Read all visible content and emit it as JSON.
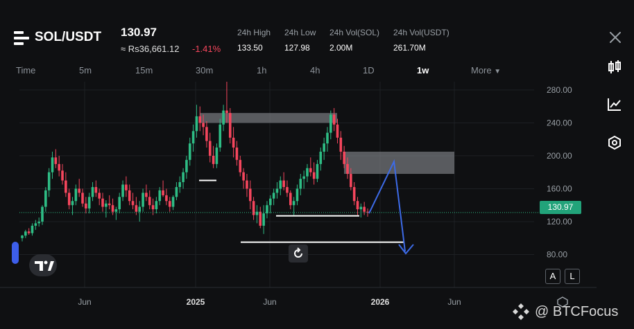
{
  "header": {
    "pair": "SOL/USDT",
    "price": "130.97",
    "fiat": "≈ Rs36,661.12",
    "change": "-1.41%",
    "stats": [
      {
        "label": "24h High",
        "value": "133.50"
      },
      {
        "label": "24h Low",
        "value": "127.98"
      },
      {
        "label": "24h Vol(SOL)",
        "value": "2.00M"
      },
      {
        "label": "24h Vol(USDT)",
        "value": "261.70M"
      }
    ]
  },
  "timeframes": [
    "Time",
    "5m",
    "15m",
    "30m",
    "1h",
    "4h",
    "1D",
    "1w",
    "More"
  ],
  "active_timeframe": "1w",
  "price_badge": "130.97",
  "scale_buttons": {
    "auto": "A",
    "log": "L"
  },
  "watermark": "@ BTCFocus",
  "icons": {
    "close": "close-icon",
    "candles": "candlestick-icon",
    "indicators": "indicator-icon",
    "settings": "hexagon-settings-icon",
    "tradingview": "tradingview-logo-icon",
    "reset": "reset-icon"
  },
  "colors": {
    "up": "#2ebd85",
    "down": "#f6465d",
    "annotation_arrow": "#3d6be8",
    "background": "#0f1012"
  },
  "chart_data": {
    "type": "candlestick",
    "interval": "1w",
    "yticks": [
      "280.00",
      "240.00",
      "200.00",
      "160.00",
      "120.00",
      "80.00"
    ],
    "ylim": [
      40,
      290
    ],
    "xticks": [
      "Jun",
      "2025",
      "Jun",
      "2026",
      "Jun"
    ],
    "last_price": 130.97,
    "grid": true,
    "zones": [
      {
        "from": 240,
        "to": 252,
        "label": ""
      },
      {
        "from": 178,
        "to": 205,
        "label": ""
      }
    ],
    "levels": [
      170,
      127,
      95
    ],
    "projection": [
      [
        130,
        193,
        88
      ]
    ],
    "candles": [
      [
        100,
        104,
        96,
        103
      ],
      [
        103,
        110,
        100,
        108
      ],
      [
        108,
        112,
        104,
        106
      ],
      [
        106,
        118,
        103,
        115
      ],
      [
        115,
        122,
        110,
        118
      ],
      [
        118,
        125,
        114,
        120
      ],
      [
        120,
        140,
        116,
        138
      ],
      [
        138,
        162,
        132,
        158
      ],
      [
        158,
        185,
        150,
        180
      ],
      [
        180,
        205,
        172,
        198
      ],
      [
        198,
        208,
        185,
        190
      ],
      [
        190,
        200,
        175,
        182
      ],
      [
        182,
        190,
        165,
        170
      ],
      [
        170,
        180,
        150,
        155
      ],
      [
        155,
        160,
        135,
        140
      ],
      [
        140,
        150,
        128,
        145
      ],
      [
        145,
        165,
        140,
        160
      ],
      [
        160,
        172,
        150,
        155
      ],
      [
        155,
        160,
        138,
        142
      ],
      [
        142,
        150,
        130,
        136
      ],
      [
        136,
        155,
        130,
        150
      ],
      [
        150,
        168,
        145,
        162
      ],
      [
        162,
        170,
        150,
        155
      ],
      [
        155,
        160,
        140,
        148
      ],
      [
        148,
        155,
        132,
        138
      ],
      [
        138,
        146,
        125,
        142
      ],
      [
        142,
        152,
        135,
        140
      ],
      [
        140,
        148,
        128,
        132
      ],
      [
        132,
        138,
        122,
        135
      ],
      [
        135,
        155,
        130,
        150
      ],
      [
        150,
        170,
        145,
        165
      ],
      [
        165,
        175,
        150,
        158
      ],
      [
        158,
        165,
        140,
        145
      ],
      [
        145,
        155,
        135,
        140
      ],
      [
        140,
        150,
        128,
        132
      ],
      [
        132,
        145,
        120,
        138
      ],
      [
        138,
        160,
        132,
        155
      ],
      [
        155,
        165,
        145,
        150
      ],
      [
        150,
        158,
        135,
        140
      ],
      [
        140,
        148,
        128,
        135
      ],
      [
        135,
        150,
        130,
        145
      ],
      [
        145,
        162,
        140,
        158
      ],
      [
        158,
        170,
        150,
        152
      ],
      [
        152,
        160,
        140,
        145
      ],
      [
        145,
        150,
        132,
        138
      ],
      [
        138,
        152,
        134,
        150
      ],
      [
        150,
        168,
        146,
        162
      ],
      [
        162,
        175,
        155,
        168
      ],
      [
        168,
        185,
        160,
        180
      ],
      [
        180,
        200,
        172,
        195
      ],
      [
        195,
        222,
        188,
        215
      ],
      [
        215,
        238,
        205,
        230
      ],
      [
        230,
        262,
        222,
        248
      ],
      [
        248,
        260,
        230,
        240
      ],
      [
        240,
        250,
        225,
        235
      ],
      [
        235,
        242,
        210,
        218
      ],
      [
        218,
        228,
        192,
        200
      ],
      [
        200,
        212,
        185,
        190
      ],
      [
        190,
        215,
        185,
        210
      ],
      [
        210,
        245,
        205,
        238
      ],
      [
        238,
        262,
        230,
        255
      ],
      [
        255,
        294,
        240,
        252
      ],
      [
        252,
        258,
        215,
        222
      ],
      [
        222,
        235,
        198,
        210
      ],
      [
        210,
        218,
        188,
        195
      ],
      [
        195,
        200,
        175,
        180
      ],
      [
        180,
        185,
        160,
        170
      ],
      [
        170,
        178,
        150,
        160
      ],
      [
        160,
        170,
        135,
        145
      ],
      [
        145,
        150,
        122,
        128
      ],
      [
        128,
        140,
        118,
        132
      ],
      [
        132,
        138,
        112,
        115
      ],
      [
        115,
        140,
        105,
        130
      ],
      [
        130,
        145,
        124,
        140
      ],
      [
        140,
        152,
        130,
        148
      ],
      [
        148,
        160,
        140,
        155
      ],
      [
        155,
        168,
        148,
        160
      ],
      [
        160,
        175,
        152,
        170
      ],
      [
        170,
        180,
        158,
        162
      ],
      [
        162,
        170,
        150,
        155
      ],
      [
        155,
        158,
        135,
        140
      ],
      [
        140,
        150,
        128,
        145
      ],
      [
        145,
        165,
        140,
        160
      ],
      [
        160,
        178,
        152,
        172
      ],
      [
        172,
        182,
        160,
        175
      ],
      [
        175,
        190,
        168,
        185
      ],
      [
        185,
        198,
        175,
        180
      ],
      [
        180,
        192,
        165,
        172
      ],
      [
        172,
        195,
        168,
        190
      ],
      [
        190,
        210,
        182,
        205
      ],
      [
        205,
        222,
        195,
        215
      ],
      [
        215,
        235,
        205,
        228
      ],
      [
        228,
        255,
        220,
        250
      ],
      [
        250,
        258,
        230,
        238
      ],
      [
        238,
        245,
        215,
        222
      ],
      [
        222,
        230,
        195,
        205
      ],
      [
        205,
        212,
        185,
        190
      ],
      [
        190,
        198,
        172,
        178
      ],
      [
        178,
        185,
        158,
        162
      ],
      [
        162,
        168,
        140,
        145
      ],
      [
        145,
        150,
        128,
        135
      ],
      [
        135,
        142,
        125,
        138
      ],
      [
        138,
        144,
        128,
        132
      ],
      [
        132,
        136,
        126,
        131
      ]
    ]
  }
}
